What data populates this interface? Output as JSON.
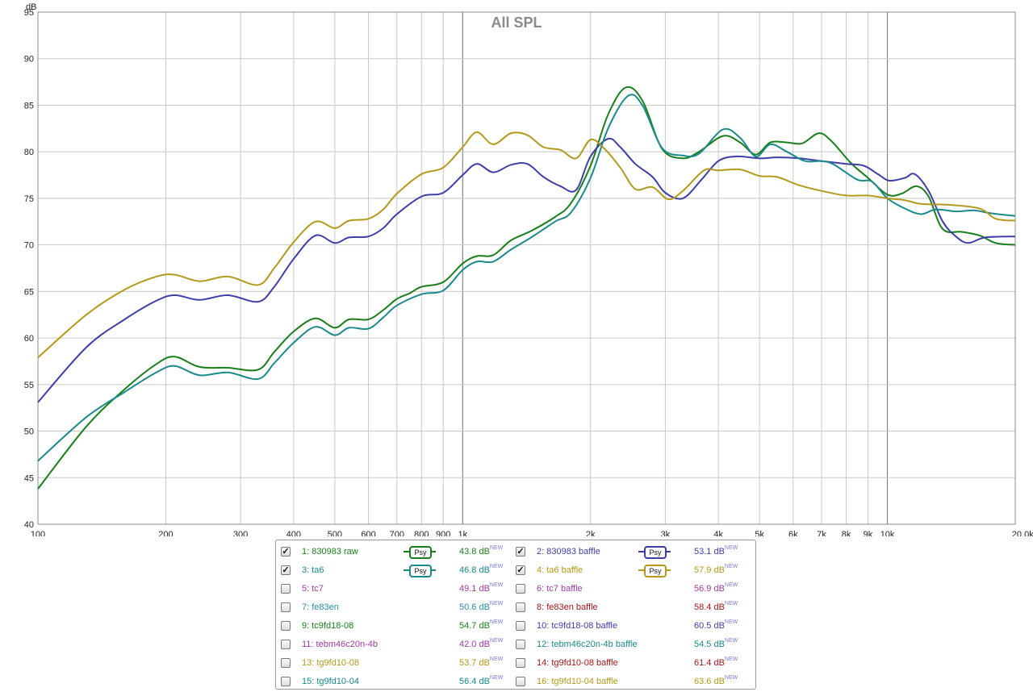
{
  "chart_data": {
    "type": "line",
    "title": "All SPL",
    "ylabel": "dB",
    "xlabel": "",
    "x_scale": "log",
    "xlim": [
      100,
      20000
    ],
    "ylim": [
      40,
      95
    ],
    "grid": true,
    "x_ticks": [
      {
        "v": 100,
        "label": "100"
      },
      {
        "v": 200,
        "label": "200"
      },
      {
        "v": 300,
        "label": "300"
      },
      {
        "v": 400,
        "label": "400"
      },
      {
        "v": 500,
        "label": "500"
      },
      {
        "v": 600,
        "label": "600"
      },
      {
        "v": 700,
        "label": "700"
      },
      {
        "v": 800,
        "label": "800"
      },
      {
        "v": 900,
        "label": "900"
      },
      {
        "v": 1000,
        "label": "1k"
      },
      {
        "v": 2000,
        "label": "2k"
      },
      {
        "v": 3000,
        "label": "3k"
      },
      {
        "v": 4000,
        "label": "4k"
      },
      {
        "v": 5000,
        "label": "5k"
      },
      {
        "v": 6000,
        "label": "6k"
      },
      {
        "v": 7000,
        "label": "7k"
      },
      {
        "v": 8000,
        "label": "8k"
      },
      {
        "v": 9000,
        "label": "9k"
      },
      {
        "v": 10000,
        "label": "10k"
      },
      {
        "v": 20000,
        "label": "20.0kHz"
      }
    ],
    "y_ticks": [
      40,
      45,
      50,
      55,
      60,
      65,
      70,
      75,
      80,
      85,
      90,
      95
    ],
    "series": [
      {
        "name": "1: 830983 raw",
        "color": "#1a7f1a",
        "points": [
          [
            100,
            43.8
          ],
          [
            130,
            50.5
          ],
          [
            160,
            54.5
          ],
          [
            190,
            57.2
          ],
          [
            210,
            58.0
          ],
          [
            240,
            56.9
          ],
          [
            280,
            56.8
          ],
          [
            330,
            56.6
          ],
          [
            360,
            58.5
          ],
          [
            400,
            60.7
          ],
          [
            450,
            62.1
          ],
          [
            500,
            61.1
          ],
          [
            540,
            62.0
          ],
          [
            600,
            62.0
          ],
          [
            650,
            63.0
          ],
          [
            700,
            64.2
          ],
          [
            750,
            64.8
          ],
          [
            800,
            65.5
          ],
          [
            900,
            66.0
          ],
          [
            1000,
            68.0
          ],
          [
            1080,
            68.8
          ],
          [
            1180,
            68.9
          ],
          [
            1300,
            70.5
          ],
          [
            1450,
            71.5
          ],
          [
            1650,
            73.0
          ],
          [
            1800,
            74.5
          ],
          [
            2000,
            78.5
          ],
          [
            2200,
            84.0
          ],
          [
            2420,
            86.9
          ],
          [
            2650,
            85.5
          ],
          [
            2950,
            80.3
          ],
          [
            3300,
            79.3
          ],
          [
            3600,
            80.0
          ],
          [
            4100,
            81.7
          ],
          [
            4500,
            81.0
          ],
          [
            4900,
            79.7
          ],
          [
            5300,
            81.0
          ],
          [
            5800,
            81.0
          ],
          [
            6300,
            80.9
          ],
          [
            6900,
            82.0
          ],
          [
            7400,
            81.1
          ],
          [
            8200,
            78.8
          ],
          [
            9000,
            77.2
          ],
          [
            10000,
            75.4
          ],
          [
            10800,
            75.5
          ],
          [
            11700,
            76.3
          ],
          [
            12500,
            75.2
          ],
          [
            13500,
            71.7
          ],
          [
            15000,
            71.4
          ],
          [
            16500,
            71.0
          ],
          [
            18000,
            70.2
          ],
          [
            20000,
            70.0
          ]
        ]
      },
      {
        "name": "2: 830983 baffle",
        "color": "#3e3ea8",
        "points": [
          [
            100,
            53.1
          ],
          [
            130,
            59.0
          ],
          [
            160,
            62.0
          ],
          [
            190,
            64.0
          ],
          [
            210,
            64.6
          ],
          [
            240,
            64.1
          ],
          [
            280,
            64.6
          ],
          [
            330,
            63.9
          ],
          [
            360,
            65.5
          ],
          [
            400,
            68.5
          ],
          [
            450,
            71.0
          ],
          [
            500,
            70.2
          ],
          [
            540,
            70.8
          ],
          [
            600,
            70.9
          ],
          [
            650,
            71.8
          ],
          [
            700,
            73.3
          ],
          [
            800,
            75.2
          ],
          [
            900,
            75.6
          ],
          [
            1000,
            77.5
          ],
          [
            1080,
            78.7
          ],
          [
            1180,
            77.8
          ],
          [
            1300,
            78.6
          ],
          [
            1420,
            78.7
          ],
          [
            1550,
            77.3
          ],
          [
            1700,
            76.3
          ],
          [
            1850,
            75.9
          ],
          [
            2000,
            79.5
          ],
          [
            2200,
            81.4
          ],
          [
            2350,
            80.5
          ],
          [
            2550,
            78.7
          ],
          [
            2800,
            77.3
          ],
          [
            3000,
            75.6
          ],
          [
            3300,
            75.0
          ],
          [
            3650,
            77.0
          ],
          [
            4000,
            79.0
          ],
          [
            4400,
            79.5
          ],
          [
            5000,
            79.3
          ],
          [
            5500,
            79.4
          ],
          [
            6200,
            79.3
          ],
          [
            7000,
            79.0
          ],
          [
            8000,
            78.7
          ],
          [
            8800,
            78.5
          ],
          [
            9500,
            77.6
          ],
          [
            10100,
            76.9
          ],
          [
            11000,
            77.2
          ],
          [
            11600,
            77.6
          ],
          [
            12500,
            75.8
          ],
          [
            13500,
            72.5
          ],
          [
            14500,
            70.9
          ],
          [
            15500,
            70.2
          ],
          [
            17000,
            70.8
          ],
          [
            20000,
            70.9
          ]
        ]
      },
      {
        "name": "3: ta6",
        "color": "#1a8a8a",
        "points": [
          [
            100,
            46.8
          ],
          [
            130,
            51.5
          ],
          [
            160,
            54.2
          ],
          [
            190,
            56.3
          ],
          [
            210,
            57.0
          ],
          [
            240,
            56.0
          ],
          [
            280,
            56.3
          ],
          [
            330,
            55.6
          ],
          [
            360,
            57.3
          ],
          [
            400,
            59.5
          ],
          [
            450,
            61.2
          ],
          [
            500,
            60.3
          ],
          [
            540,
            61.1
          ],
          [
            600,
            61.0
          ],
          [
            650,
            62.2
          ],
          [
            700,
            63.5
          ],
          [
            800,
            64.7
          ],
          [
            900,
            65.1
          ],
          [
            1000,
            67.3
          ],
          [
            1080,
            68.2
          ],
          [
            1180,
            68.2
          ],
          [
            1300,
            69.5
          ],
          [
            1450,
            70.8
          ],
          [
            1650,
            72.5
          ],
          [
            1800,
            73.5
          ],
          [
            2000,
            77.2
          ],
          [
            2200,
            82.5
          ],
          [
            2450,
            86.0
          ],
          [
            2650,
            85.0
          ],
          [
            2950,
            80.4
          ],
          [
            3300,
            79.6
          ],
          [
            3600,
            79.8
          ],
          [
            4100,
            82.4
          ],
          [
            4500,
            81.5
          ],
          [
            4900,
            79.5
          ],
          [
            5300,
            80.8
          ],
          [
            5800,
            80.0
          ],
          [
            6400,
            79.0
          ],
          [
            7000,
            79.0
          ],
          [
            7500,
            78.6
          ],
          [
            8500,
            77.0
          ],
          [
            9200,
            76.8
          ],
          [
            10000,
            75.0
          ],
          [
            11000,
            73.9
          ],
          [
            12000,
            73.3
          ],
          [
            13000,
            73.8
          ],
          [
            14500,
            73.6
          ],
          [
            16000,
            73.7
          ],
          [
            17500,
            73.4
          ],
          [
            20000,
            73.1
          ]
        ]
      },
      {
        "name": "4: ta6 baffle",
        "color": "#b39a1c",
        "points": [
          [
            100,
            57.9
          ],
          [
            130,
            62.5
          ],
          [
            160,
            65.2
          ],
          [
            190,
            66.6
          ],
          [
            210,
            66.8
          ],
          [
            240,
            66.1
          ],
          [
            280,
            66.6
          ],
          [
            330,
            65.7
          ],
          [
            360,
            67.5
          ],
          [
            400,
            70.3
          ],
          [
            450,
            72.5
          ],
          [
            500,
            71.8
          ],
          [
            540,
            72.6
          ],
          [
            600,
            72.8
          ],
          [
            650,
            73.8
          ],
          [
            700,
            75.5
          ],
          [
            800,
            77.6
          ],
          [
            900,
            78.3
          ],
          [
            1000,
            80.5
          ],
          [
            1080,
            82.1
          ],
          [
            1180,
            80.8
          ],
          [
            1300,
            82.0
          ],
          [
            1420,
            81.8
          ],
          [
            1550,
            80.5
          ],
          [
            1700,
            80.2
          ],
          [
            1850,
            79.3
          ],
          [
            2000,
            81.3
          ],
          [
            2150,
            80.4
          ],
          [
            2350,
            78.3
          ],
          [
            2550,
            76.0
          ],
          [
            2800,
            76.2
          ],
          [
            3050,
            74.9
          ],
          [
            3300,
            75.8
          ],
          [
            3700,
            78.0
          ],
          [
            4000,
            78.0
          ],
          [
            4500,
            78.1
          ],
          [
            5000,
            77.4
          ],
          [
            5500,
            77.3
          ],
          [
            6200,
            76.4
          ],
          [
            7000,
            75.8
          ],
          [
            8000,
            75.3
          ],
          [
            9000,
            75.3
          ],
          [
            10000,
            75.0
          ],
          [
            11000,
            74.8
          ],
          [
            12000,
            74.4
          ],
          [
            14000,
            74.3
          ],
          [
            16500,
            73.9
          ],
          [
            18000,
            72.8
          ],
          [
            20000,
            72.6
          ]
        ]
      }
    ]
  },
  "legend": {
    "items": [
      {
        "name": "1: 830983 raw",
        "checked": true,
        "psy": true,
        "psy_label": "Psy",
        "value": "43.8 dB",
        "badge": "NEW",
        "color": "#1a7f1a"
      },
      {
        "name": "2: 830983 baffle",
        "checked": true,
        "psy": true,
        "psy_label": "Psy",
        "value": "53.1 dB",
        "badge": "NEW",
        "color": "#3e3ea8"
      },
      {
        "name": "3: ta6",
        "checked": true,
        "psy": true,
        "psy_label": "Psy",
        "value": "46.8 dB",
        "badge": "NEW",
        "color": "#1a8a8a"
      },
      {
        "name": "4: ta6 baffle",
        "checked": true,
        "psy": true,
        "psy_label": "Psy",
        "value": "57.9 dB",
        "badge": "NEW",
        "color": "#b39a1c"
      },
      {
        "name": "5: tc7",
        "checked": false,
        "psy": false,
        "value": "49.1 dB",
        "badge": "NEW",
        "color": "#a03aa0"
      },
      {
        "name": "6: tc7 baffle",
        "checked": false,
        "psy": false,
        "value": "56.9 dB",
        "badge": "NEW",
        "color": "#a03aa0"
      },
      {
        "name": "7: fe83en",
        "checked": false,
        "psy": false,
        "value": "50.6 dB",
        "badge": "NEW",
        "color": "#2a8fa8"
      },
      {
        "name": "8: fe83en baffle",
        "checked": false,
        "psy": false,
        "value": "58.4 dB",
        "badge": "NEW",
        "color": "#a01818"
      },
      {
        "name": "9: tc9fd18-08",
        "checked": false,
        "psy": false,
        "value": "54.7 dB",
        "badge": "NEW",
        "color": "#1a7f1a"
      },
      {
        "name": "10: tc9fd18-08 baffle",
        "checked": false,
        "psy": false,
        "value": "60.5 dB",
        "badge": "NEW",
        "color": "#3e3ea8"
      },
      {
        "name": "11: tebm46c20n-4b",
        "checked": false,
        "psy": false,
        "value": "42.0 dB",
        "badge": "NEW",
        "color": "#a03aa0"
      },
      {
        "name": "12: tebm46c20n-4b baffle",
        "checked": false,
        "psy": false,
        "value": "54.5 dB",
        "badge": "NEW",
        "color": "#1a8a8a"
      },
      {
        "name": "13: tg9fd10-08",
        "checked": false,
        "psy": false,
        "value": "53.7 dB",
        "badge": "NEW",
        "color": "#b39a1c"
      },
      {
        "name": "14: tg9fd10-08 baffle",
        "checked": false,
        "psy": false,
        "value": "61.4 dB",
        "badge": "NEW",
        "color": "#a01818"
      },
      {
        "name": "15: tg9fd10-04",
        "checked": false,
        "psy": false,
        "value": "56.4 dB",
        "badge": "NEW",
        "color": "#1a8a8a"
      },
      {
        "name": "16: tg9fd10-04 baffle",
        "checked": false,
        "psy": false,
        "value": "63.6 dB",
        "badge": "NEW",
        "color": "#b39a1c"
      }
    ]
  }
}
